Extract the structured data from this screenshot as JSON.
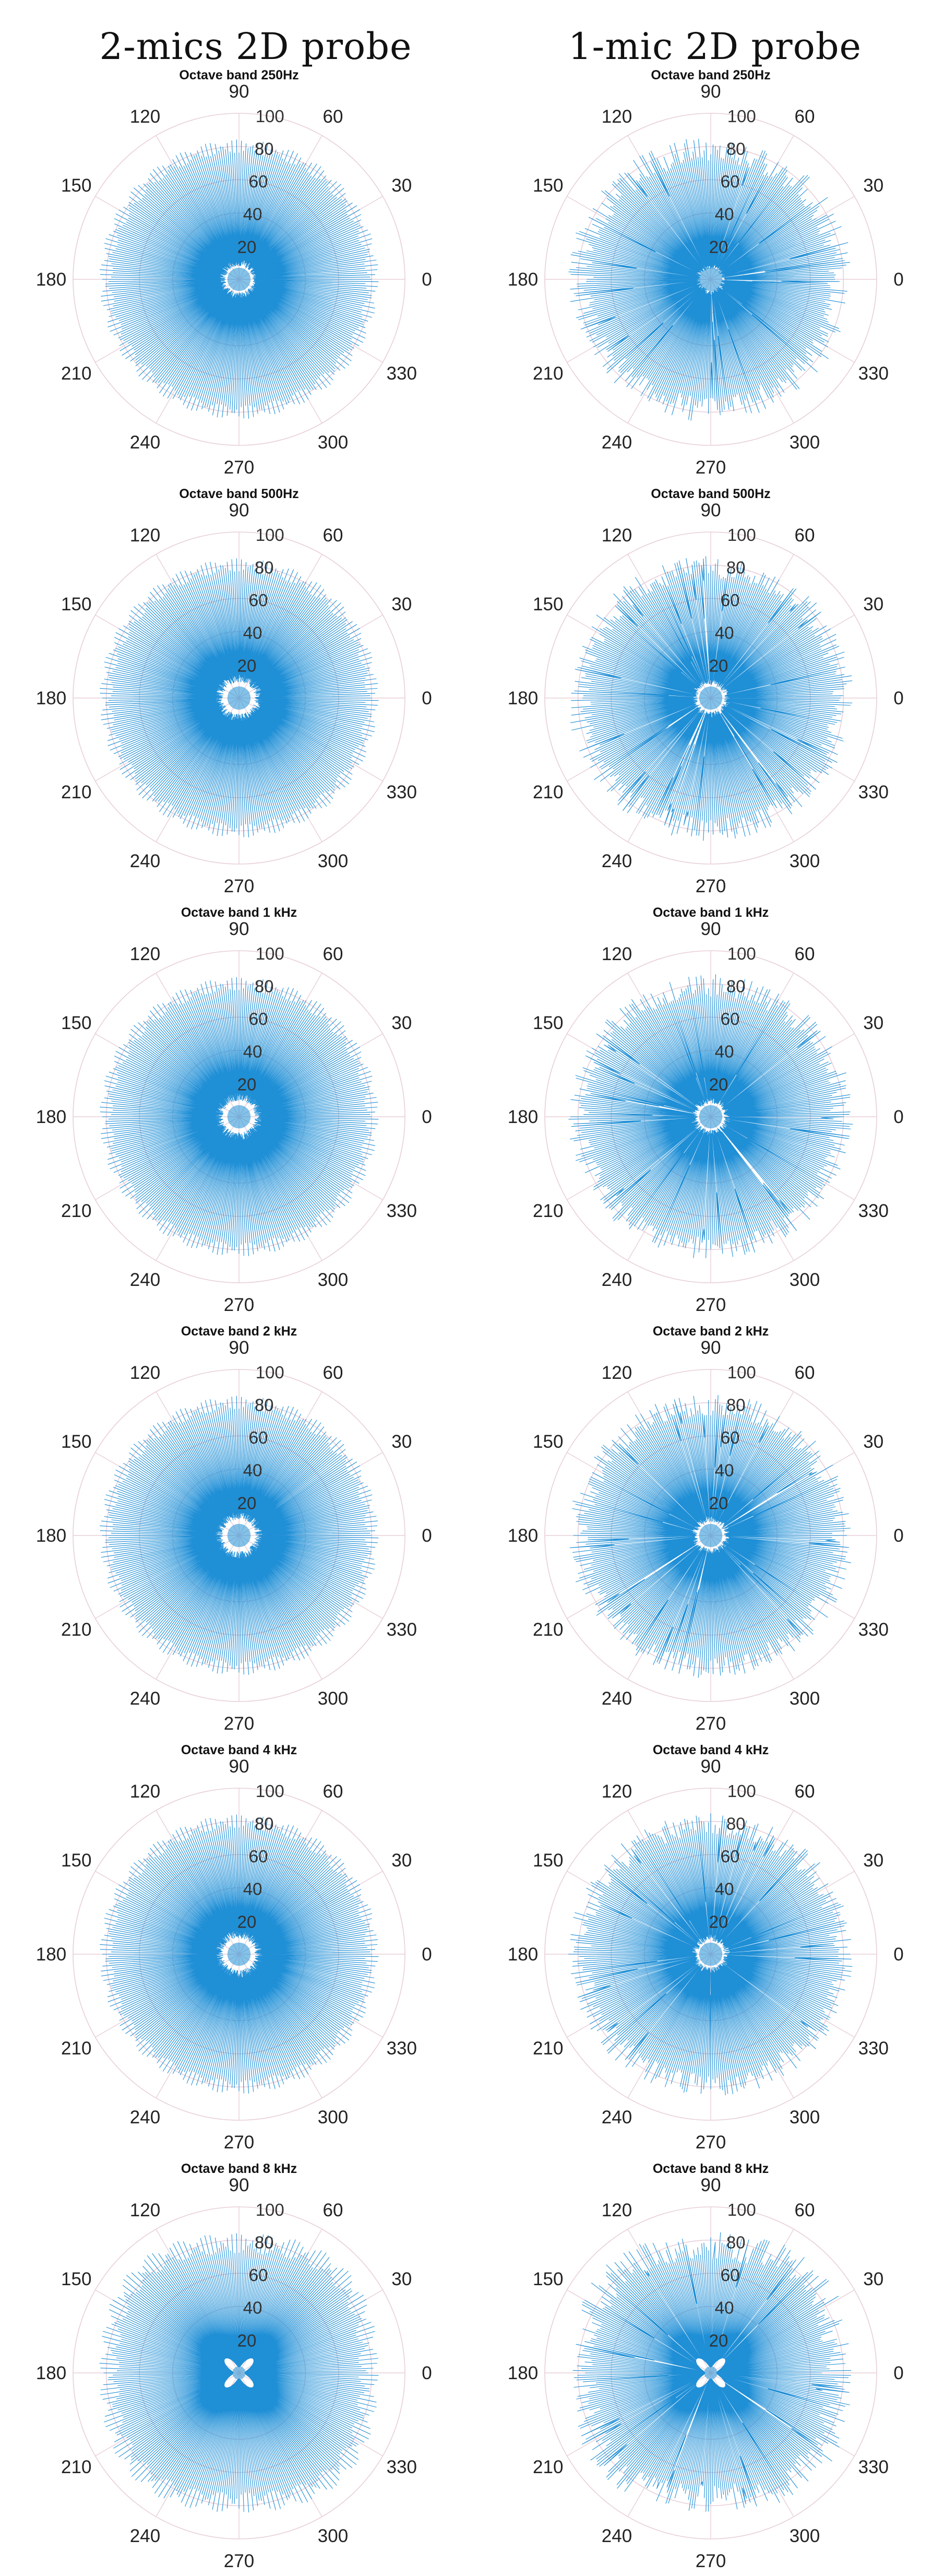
{
  "headers": {
    "left": "2-mics 2D probe",
    "right": "1-mic 2D probe"
  },
  "colors": {
    "trace": "#1f8fd6",
    "grid": "#e8cfd9",
    "text": "#222222"
  },
  "chart_data": [
    {
      "type": "polar",
      "probe": "2-mics 2D probe",
      "band": "250Hz",
      "title": "Octave band 250Hz",
      "rlim": [
        0,
        100
      ],
      "rticks": [
        "20",
        "40",
        "60",
        "80",
        "100"
      ],
      "theta_ticks": [
        "0",
        "30",
        "60",
        "90",
        "120",
        "150",
        "180",
        "210",
        "240",
        "270",
        "300",
        "330"
      ],
      "pattern": "omni",
      "pattern_params": {
        "outer": 80,
        "ripple": 4,
        "inner": 10,
        "spokes": 180
      }
    },
    {
      "type": "polar",
      "probe": "1-mic 2D probe",
      "band": "250Hz",
      "title": "Octave band 250Hz",
      "rlim": [
        0,
        100
      ],
      "rticks": [
        "20",
        "40",
        "60",
        "80",
        "100"
      ],
      "theta_ticks": [
        "0",
        "30",
        "60",
        "90",
        "120",
        "150",
        "180",
        "210",
        "240",
        "270",
        "300",
        "330"
      ],
      "pattern": "omni-irregular",
      "pattern_params": {
        "outer": 78,
        "ripple": 8,
        "inner": 8,
        "spokes": 180
      }
    },
    {
      "type": "polar",
      "probe": "2-mics 2D probe",
      "band": "500Hz",
      "title": "Octave band 500Hz",
      "rlim": [
        0,
        100
      ],
      "rticks": [
        "20",
        "40",
        "60",
        "80",
        "100"
      ],
      "theta_ticks": [
        "0",
        "30",
        "60",
        "90",
        "120",
        "150",
        "180",
        "210",
        "240",
        "270",
        "300",
        "330"
      ],
      "pattern": "omni",
      "pattern_params": {
        "outer": 80,
        "ripple": 4,
        "inner": 12,
        "spokes": 180
      }
    },
    {
      "type": "polar",
      "probe": "1-mic 2D probe",
      "band": "500Hz",
      "title": "Octave band 500Hz",
      "rlim": [
        0,
        100
      ],
      "rticks": [
        "20",
        "40",
        "60",
        "80",
        "100"
      ],
      "theta_ticks": [
        "0",
        "30",
        "60",
        "90",
        "120",
        "150",
        "180",
        "210",
        "240",
        "270",
        "300",
        "330"
      ],
      "pattern": "omni-irregular",
      "pattern_params": {
        "outer": 79,
        "ripple": 7,
        "inner": 10,
        "spokes": 180
      }
    },
    {
      "type": "polar",
      "probe": "2-mics 2D probe",
      "band": "1 kHz",
      "title": "Octave band 1 kHz",
      "rlim": [
        0,
        100
      ],
      "rticks": [
        "20",
        "40",
        "60",
        "80",
        "100"
      ],
      "theta_ticks": [
        "0",
        "30",
        "60",
        "90",
        "120",
        "150",
        "180",
        "210",
        "240",
        "270",
        "300",
        "330"
      ],
      "pattern": "omni",
      "pattern_params": {
        "outer": 80,
        "ripple": 4,
        "inner": 12,
        "spokes": 180
      }
    },
    {
      "type": "polar",
      "probe": "1-mic 2D probe",
      "band": "1 kHz",
      "title": "Octave band 1 kHz",
      "rlim": [
        0,
        100
      ],
      "rticks": [
        "20",
        "40",
        "60",
        "80",
        "100"
      ],
      "theta_ticks": [
        "0",
        "30",
        "60",
        "90",
        "120",
        "150",
        "180",
        "210",
        "240",
        "270",
        "300",
        "330"
      ],
      "pattern": "omni-irregular",
      "pattern_params": {
        "outer": 79,
        "ripple": 7,
        "inner": 10,
        "spokes": 180
      }
    },
    {
      "type": "polar",
      "probe": "2-mics 2D probe",
      "band": "2 kHz",
      "title": "Octave band 2 kHz",
      "rlim": [
        0,
        100
      ],
      "rticks": [
        "20",
        "40",
        "60",
        "80",
        "100"
      ],
      "theta_ticks": [
        "0",
        "30",
        "60",
        "90",
        "120",
        "150",
        "180",
        "210",
        "240",
        "270",
        "300",
        "330"
      ],
      "pattern": "omni",
      "pattern_params": {
        "outer": 80,
        "ripple": 4,
        "inner": 12,
        "spokes": 180
      }
    },
    {
      "type": "polar",
      "probe": "1-mic 2D probe",
      "band": "2 kHz",
      "title": "Octave band 2 kHz",
      "rlim": [
        0,
        100
      ],
      "rticks": [
        "20",
        "40",
        "60",
        "80",
        "100"
      ],
      "theta_ticks": [
        "0",
        "30",
        "60",
        "90",
        "120",
        "150",
        "180",
        "210",
        "240",
        "270",
        "300",
        "330"
      ],
      "pattern": "omni-irregular",
      "pattern_params": {
        "outer": 79,
        "ripple": 7,
        "inner": 10,
        "spokes": 180
      }
    },
    {
      "type": "polar",
      "probe": "2-mics 2D probe",
      "band": "4 kHz",
      "title": "Octave band 4 kHz",
      "rlim": [
        0,
        100
      ],
      "rticks": [
        "20",
        "40",
        "60",
        "80",
        "100"
      ],
      "theta_ticks": [
        "0",
        "30",
        "60",
        "90",
        "120",
        "150",
        "180",
        "210",
        "240",
        "270",
        "300",
        "330"
      ],
      "pattern": "omni",
      "pattern_params": {
        "outer": 80,
        "ripple": 4,
        "inner": 12,
        "spokes": 180
      }
    },
    {
      "type": "polar",
      "probe": "1-mic 2D probe",
      "band": "4 kHz",
      "title": "Octave band 4 kHz",
      "rlim": [
        0,
        100
      ],
      "rticks": [
        "20",
        "40",
        "60",
        "80",
        "100"
      ],
      "theta_ticks": [
        "0",
        "30",
        "60",
        "90",
        "120",
        "150",
        "180",
        "210",
        "240",
        "270",
        "300",
        "330"
      ],
      "pattern": "omni-irregular",
      "pattern_params": {
        "outer": 79,
        "ripple": 7,
        "inner": 10,
        "spokes": 180
      }
    },
    {
      "type": "polar",
      "probe": "2-mics 2D probe",
      "band": "8 kHz",
      "title": "Octave band 8 kHz",
      "rlim": [
        0,
        100
      ],
      "rticks": [
        "20",
        "40",
        "60",
        "80",
        "100"
      ],
      "theta_ticks": [
        "0",
        "30",
        "60",
        "90",
        "120",
        "150",
        "180",
        "210",
        "240",
        "270",
        "300",
        "330"
      ],
      "pattern": "cross",
      "pattern_params": {
        "outer": 84,
        "ripple": 6,
        "inner": 6,
        "spokes": 180
      }
    },
    {
      "type": "polar",
      "probe": "1-mic 2D probe",
      "band": "8 kHz",
      "title": "Octave band 8 kHz",
      "rlim": [
        0,
        100
      ],
      "rticks": [
        "20",
        "40",
        "60",
        "80",
        "100"
      ],
      "theta_ticks": [
        "0",
        "30",
        "60",
        "90",
        "120",
        "150",
        "180",
        "210",
        "240",
        "270",
        "300",
        "330"
      ],
      "pattern": "cross-irregular",
      "pattern_params": {
        "outer": 82,
        "ripple": 9,
        "inner": 6,
        "spokes": 180
      }
    }
  ]
}
